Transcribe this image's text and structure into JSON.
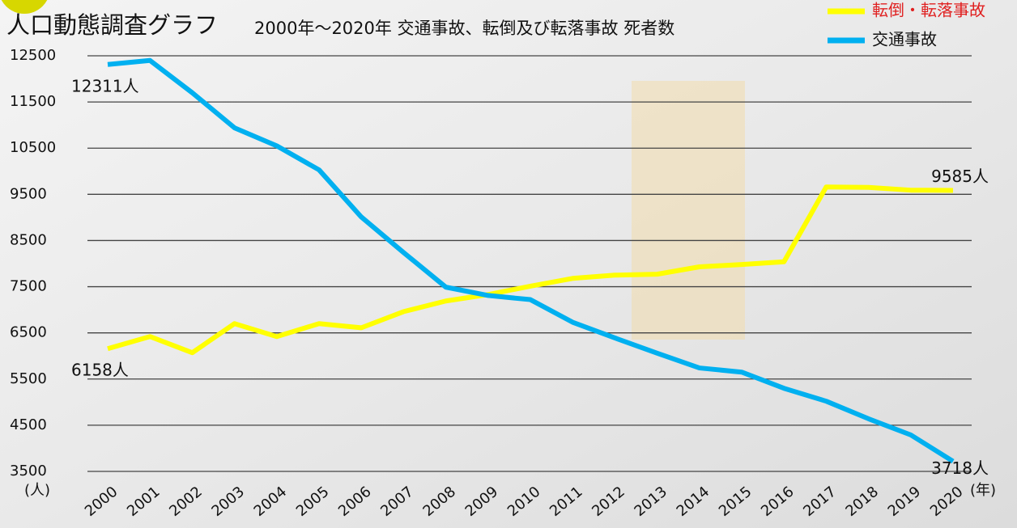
{
  "chart_data": {
    "type": "line",
    "title": "人口動態調査グラフ",
    "subtitle": "2000年～2020年 交通事故、転倒及び転落事故 死者数",
    "y_unit": "(人)",
    "x_unit": "(年)",
    "categories": [
      "2000",
      "2001",
      "2002",
      "2003",
      "2004",
      "2005",
      "2006",
      "2007",
      "2008",
      "2009",
      "2010",
      "2011",
      "2012",
      "2013",
      "2014",
      "2015",
      "2016",
      "2017",
      "2018",
      "2019",
      "2020"
    ],
    "series": [
      {
        "name": "転倒・転落事故",
        "color": "#ffff00",
        "legend_text_color": "#e02020",
        "values": [
          6158,
          6420,
          6070,
          6700,
          6420,
          6700,
          6610,
          6960,
          7190,
          7330,
          7510,
          7680,
          7750,
          7770,
          7930,
          7980,
          8040,
          9660,
          9650,
          9590,
          9585
        ],
        "value_labels": [
          "6158人",
          null,
          null,
          null,
          null,
          null,
          null,
          null,
          null,
          null,
          null,
          null,
          null,
          null,
          null,
          null,
          null,
          null,
          null,
          null,
          "9585人"
        ]
      },
      {
        "name": "交通事故",
        "color": "#00b0f0",
        "legend_text_color": "#111111",
        "values": [
          12311,
          12400,
          11700,
          10940,
          10550,
          10030,
          9010,
          8240,
          7490,
          7310,
          7220,
          6730,
          6390,
          6060,
          5740,
          5650,
          5300,
          5020,
          4640,
          4290,
          3718
        ],
        "value_labels": [
          "12311人",
          null,
          null,
          null,
          null,
          null,
          null,
          null,
          null,
          null,
          null,
          null,
          null,
          null,
          null,
          null,
          null,
          null,
          null,
          null,
          "3718人"
        ]
      }
    ],
    "ylim": [
      3500,
      12500
    ],
    "yticks": [
      3500,
      4500,
      5500,
      6500,
      7500,
      8500,
      9500,
      10500,
      11500,
      12500
    ],
    "grid": true
  }
}
